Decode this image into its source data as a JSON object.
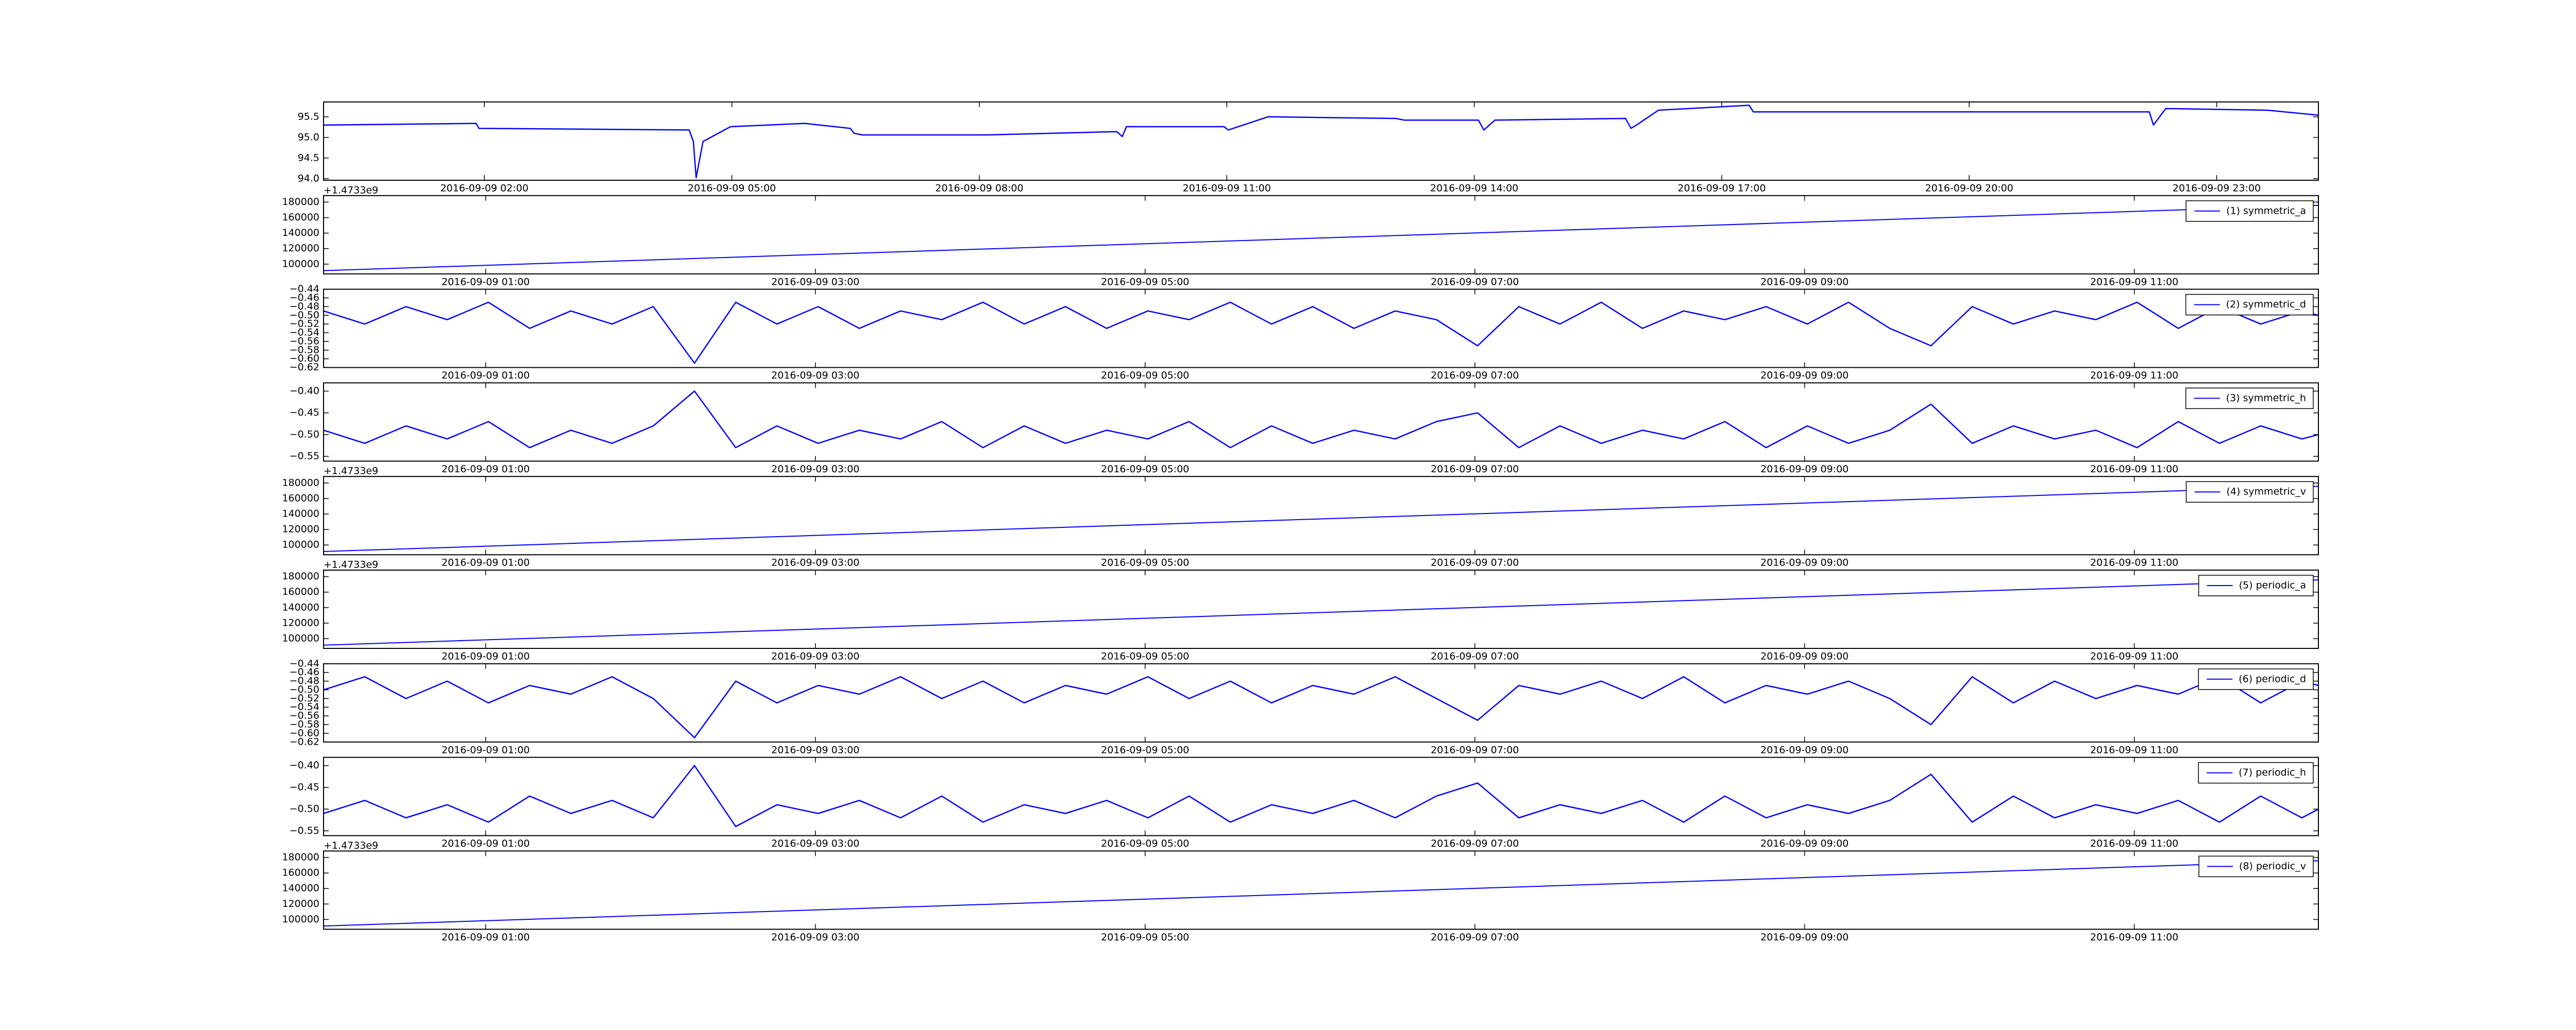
{
  "chart_data": [
    {
      "type": "line",
      "x": [
        "2016-09-09 00:03",
        "2016-09-09 01:54",
        "2016-09-09 01:56",
        "2016-09-09 04:29",
        "2016-09-09 04:32",
        "2016-09-09 04:34",
        "2016-09-09 04:39",
        "2016-09-09 04:59",
        "2016-09-09 05:53",
        "2016-09-09 06:26",
        "2016-09-09 06:29",
        "2016-09-09 06:35",
        "2016-09-09 08:05",
        "2016-09-09 09:40",
        "2016-09-09 09:44",
        "2016-09-09 09:47",
        "2016-09-09 10:58",
        "2016-09-09 11:01",
        "2016-09-09 11:30",
        "2016-09-09 13:03",
        "2016-09-09 13:09",
        "2016-09-09 14:03",
        "2016-09-09 14:07",
        "2016-09-09 14:15",
        "2016-09-09 15:50",
        "2016-09-09 15:54",
        "2016-09-09 15:58",
        "2016-09-09 16:14",
        "2016-09-09 17:20",
        "2016-09-09 17:23",
        "2016-09-09 19:44",
        "2016-09-09 19:46",
        "2016-09-09 21:01",
        "2016-09-09 22:11",
        "2016-09-09 22:14",
        "2016-09-09 22:23",
        "2016-09-09 23:37",
        "2016-09-10 00:14"
      ],
      "series": [
        {
          "color": "#0000ff",
          "values": [
            95.3,
            95.34,
            95.22,
            95.18,
            94.9,
            94.02,
            94.9,
            95.26,
            95.34,
            95.22,
            95.1,
            95.06,
            95.06,
            95.14,
            95.02,
            95.26,
            95.26,
            95.18,
            95.5,
            95.46,
            95.42,
            95.42,
            95.18,
            95.42,
            95.46,
            95.22,
            95.3,
            95.66,
            95.78,
            95.62,
            95.62,
            95.62,
            95.62,
            95.62,
            95.3,
            95.7,
            95.66,
            95.54
          ]
        }
      ],
      "xlim": [
        "2016-09-09 00:03",
        "2016-09-10 00:14"
      ],
      "xticks": [
        "2016-09-09 02:00",
        "2016-09-09 05:00",
        "2016-09-09 08:00",
        "2016-09-09 11:00",
        "2016-09-09 14:00",
        "2016-09-09 17:00",
        "2016-09-09 20:00",
        "2016-09-09 23:00"
      ],
      "ylim": [
        93.96,
        95.86
      ],
      "yticks": [
        {
          "value": 94,
          "label": "94.0"
        },
        94.5,
        {
          "value": 95,
          "label": "95.0"
        },
        95.5
      ]
    },
    {
      "type": "line",
      "x": [
        "2016-09-09 00:01",
        "2016-09-09 12:07"
      ],
      "series": [
        {
          "name": "(1) symmetric_a",
          "color": "#0000ff",
          "values": [
            91600,
            175800
          ]
        }
      ],
      "xlim": [
        "2016-09-09 00:01",
        "2016-09-09 12:07"
      ],
      "xticks": [
        "2016-09-09 01:00",
        "2016-09-09 03:00",
        "2016-09-09 05:00",
        "2016-09-09 07:00",
        "2016-09-09 09:00",
        "2016-09-09 11:00"
      ],
      "ylim": [
        87400,
        188400
      ],
      "yticks": [
        100000,
        120000,
        140000,
        160000,
        180000
      ],
      "y_offset_label": "+1.4733e9",
      "legend": "upper right"
    },
    {
      "type": "line",
      "x": [
        "2016-09-09 00:01",
        "2016-09-09 00:16",
        "2016-09-09 00:31",
        "2016-09-09 00:46",
        "2016-09-09 01:01",
        "2016-09-09 01:16",
        "2016-09-09 01:31",
        "2016-09-09 01:46",
        "2016-09-09 02:01",
        "2016-09-09 02:16",
        "2016-09-09 02:31",
        "2016-09-09 02:46",
        "2016-09-09 03:01",
        "2016-09-09 03:16",
        "2016-09-09 03:31",
        "2016-09-09 03:46",
        "2016-09-09 04:01",
        "2016-09-09 04:16",
        "2016-09-09 04:31",
        "2016-09-09 04:46",
        "2016-09-09 05:01",
        "2016-09-09 05:16",
        "2016-09-09 05:31",
        "2016-09-09 05:46",
        "2016-09-09 06:01",
        "2016-09-09 06:16",
        "2016-09-09 06:31",
        "2016-09-09 06:46",
        "2016-09-09 07:01",
        "2016-09-09 07:16",
        "2016-09-09 07:31",
        "2016-09-09 07:46",
        "2016-09-09 08:01",
        "2016-09-09 08:16",
        "2016-09-09 08:31",
        "2016-09-09 08:46",
        "2016-09-09 09:01",
        "2016-09-09 09:16",
        "2016-09-09 09:31",
        "2016-09-09 09:46",
        "2016-09-09 10:01",
        "2016-09-09 10:16",
        "2016-09-09 10:31",
        "2016-09-09 10:46",
        "2016-09-09 11:01",
        "2016-09-09 11:16",
        "2016-09-09 11:31",
        "2016-09-09 11:46",
        "2016-09-09 12:01",
        "2016-09-09 12:07"
      ],
      "series": [
        {
          "name": "(2) symmetric_d",
          "color": "#0000ff",
          "values": [
            -0.49,
            -0.52,
            -0.48,
            -0.51,
            -0.47,
            -0.53,
            -0.49,
            -0.52,
            -0.48,
            -0.61,
            -0.47,
            -0.52,
            -0.48,
            -0.53,
            -0.49,
            -0.51,
            -0.47,
            -0.52,
            -0.48,
            -0.53,
            -0.49,
            -0.51,
            -0.47,
            -0.52,
            -0.48,
            -0.53,
            -0.49,
            -0.51,
            -0.57,
            -0.48,
            -0.52,
            -0.47,
            -0.53,
            -0.49,
            -0.51,
            -0.48,
            -0.52,
            -0.47,
            -0.53,
            -0.57,
            -0.48,
            -0.52,
            -0.49,
            -0.51,
            -0.47,
            -0.53,
            -0.48,
            -0.52,
            -0.49,
            -0.5
          ]
        }
      ],
      "xlim": [
        "2016-09-09 00:01",
        "2016-09-09 12:07"
      ],
      "xticks": [
        "2016-09-09 01:00",
        "2016-09-09 03:00",
        "2016-09-09 05:00",
        "2016-09-09 07:00",
        "2016-09-09 09:00",
        "2016-09-09 11:00"
      ],
      "ylim": [
        -0.62,
        -0.44
      ],
      "yticks": [
        {
          "value": -0.62,
          "label": "−0.62"
        },
        {
          "value": -0.6,
          "label": "−0.60"
        },
        {
          "value": -0.58,
          "label": "−0.58"
        },
        {
          "value": -0.56,
          "label": "−0.56"
        },
        {
          "value": -0.54,
          "label": "−0.54"
        },
        {
          "value": -0.52,
          "label": "−0.52"
        },
        {
          "value": -0.5,
          "label": "−0.50"
        },
        {
          "value": -0.48,
          "label": "−0.48"
        },
        {
          "value": -0.46,
          "label": "−0.46"
        },
        {
          "value": -0.44,
          "label": "−0.44"
        }
      ],
      "legend": "upper right"
    },
    {
      "type": "line",
      "x": [
        "2016-09-09 00:01",
        "2016-09-09 00:16",
        "2016-09-09 00:31",
        "2016-09-09 00:46",
        "2016-09-09 01:01",
        "2016-09-09 01:16",
        "2016-09-09 01:31",
        "2016-09-09 01:46",
        "2016-09-09 02:01",
        "2016-09-09 02:16",
        "2016-09-09 02:31",
        "2016-09-09 02:46",
        "2016-09-09 03:01",
        "2016-09-09 03:16",
        "2016-09-09 03:31",
        "2016-09-09 03:46",
        "2016-09-09 04:01",
        "2016-09-09 04:16",
        "2016-09-09 04:31",
        "2016-09-09 04:46",
        "2016-09-09 05:01",
        "2016-09-09 05:16",
        "2016-09-09 05:31",
        "2016-09-09 05:46",
        "2016-09-09 06:01",
        "2016-09-09 06:16",
        "2016-09-09 06:31",
        "2016-09-09 06:46",
        "2016-09-09 07:01",
        "2016-09-09 07:16",
        "2016-09-09 07:31",
        "2016-09-09 07:46",
        "2016-09-09 08:01",
        "2016-09-09 08:16",
        "2016-09-09 08:31",
        "2016-09-09 08:46",
        "2016-09-09 09:01",
        "2016-09-09 09:16",
        "2016-09-09 09:31",
        "2016-09-09 09:46",
        "2016-09-09 10:01",
        "2016-09-09 10:16",
        "2016-09-09 10:31",
        "2016-09-09 10:46",
        "2016-09-09 11:01",
        "2016-09-09 11:16",
        "2016-09-09 11:31",
        "2016-09-09 11:46",
        "2016-09-09 12:01",
        "2016-09-09 12:07"
      ],
      "series": [
        {
          "name": "(3) symmetric_h",
          "color": "#0000ff",
          "values": [
            -0.49,
            -0.52,
            -0.48,
            -0.51,
            -0.47,
            -0.53,
            -0.49,
            -0.52,
            -0.48,
            -0.4,
            -0.53,
            -0.48,
            -0.52,
            -0.49,
            -0.51,
            -0.47,
            -0.53,
            -0.48,
            -0.52,
            -0.49,
            -0.51,
            -0.47,
            -0.53,
            -0.48,
            -0.52,
            -0.49,
            -0.51,
            -0.47,
            -0.45,
            -0.53,
            -0.48,
            -0.52,
            -0.49,
            -0.51,
            -0.47,
            -0.53,
            -0.48,
            -0.52,
            -0.49,
            -0.43,
            -0.52,
            -0.48,
            -0.51,
            -0.49,
            -0.53,
            -0.47,
            -0.52,
            -0.48,
            -0.51,
            -0.5
          ]
        }
      ],
      "xlim": [
        "2016-09-09 00:01",
        "2016-09-09 12:07"
      ],
      "xticks": [
        "2016-09-09 01:00",
        "2016-09-09 03:00",
        "2016-09-09 05:00",
        "2016-09-09 07:00",
        "2016-09-09 09:00",
        "2016-09-09 11:00"
      ],
      "ylim": [
        -0.561,
        -0.381
      ],
      "yticks": [
        {
          "value": -0.55,
          "label": "−0.55"
        },
        {
          "value": -0.5,
          "label": "−0.50"
        },
        {
          "value": -0.45,
          "label": "−0.45"
        },
        {
          "value": -0.4,
          "label": "−0.40"
        }
      ],
      "legend": "upper right"
    },
    {
      "type": "line",
      "x": [
        "2016-09-09 00:01",
        "2016-09-09 12:07"
      ],
      "series": [
        {
          "name": "(4) symmetric_v",
          "color": "#0000ff",
          "values": [
            91600,
            175800
          ]
        }
      ],
      "xlim": [
        "2016-09-09 00:01",
        "2016-09-09 12:07"
      ],
      "xticks": [
        "2016-09-09 01:00",
        "2016-09-09 03:00",
        "2016-09-09 05:00",
        "2016-09-09 07:00",
        "2016-09-09 09:00",
        "2016-09-09 11:00"
      ],
      "ylim": [
        87400,
        188400
      ],
      "yticks": [
        100000,
        120000,
        140000,
        160000,
        180000
      ],
      "y_offset_label": "+1.4733e9",
      "legend": "upper right"
    },
    {
      "type": "line",
      "x": [
        "2016-09-09 00:01",
        "2016-09-09 12:07"
      ],
      "series": [
        {
          "name": "(5) periodic_a",
          "color": "#0000ff",
          "values": [
            91600,
            175800
          ]
        }
      ],
      "xlim": [
        "2016-09-09 00:01",
        "2016-09-09 12:07"
      ],
      "xticks": [
        "2016-09-09 01:00",
        "2016-09-09 03:00",
        "2016-09-09 05:00",
        "2016-09-09 07:00",
        "2016-09-09 09:00",
        "2016-09-09 11:00"
      ],
      "ylim": [
        87400,
        188400
      ],
      "yticks": [
        100000,
        120000,
        140000,
        160000,
        180000
      ],
      "y_offset_label": "+1.4733e9",
      "legend": "upper right"
    },
    {
      "type": "line",
      "x": [
        "2016-09-09 00:01",
        "2016-09-09 00:16",
        "2016-09-09 00:31",
        "2016-09-09 00:46",
        "2016-09-09 01:01",
        "2016-09-09 01:16",
        "2016-09-09 01:31",
        "2016-09-09 01:46",
        "2016-09-09 02:01",
        "2016-09-09 02:16",
        "2016-09-09 02:31",
        "2016-09-09 02:46",
        "2016-09-09 03:01",
        "2016-09-09 03:16",
        "2016-09-09 03:31",
        "2016-09-09 03:46",
        "2016-09-09 04:01",
        "2016-09-09 04:16",
        "2016-09-09 04:31",
        "2016-09-09 04:46",
        "2016-09-09 05:01",
        "2016-09-09 05:16",
        "2016-09-09 05:31",
        "2016-09-09 05:46",
        "2016-09-09 06:01",
        "2016-09-09 06:16",
        "2016-09-09 06:31",
        "2016-09-09 06:46",
        "2016-09-09 07:01",
        "2016-09-09 07:16",
        "2016-09-09 07:31",
        "2016-09-09 07:46",
        "2016-09-09 08:01",
        "2016-09-09 08:16",
        "2016-09-09 08:31",
        "2016-09-09 08:46",
        "2016-09-09 09:01",
        "2016-09-09 09:16",
        "2016-09-09 09:31",
        "2016-09-09 09:46",
        "2016-09-09 10:01",
        "2016-09-09 10:16",
        "2016-09-09 10:31",
        "2016-09-09 10:46",
        "2016-09-09 11:01",
        "2016-09-09 11:16",
        "2016-09-09 11:31",
        "2016-09-09 11:46",
        "2016-09-09 12:01",
        "2016-09-09 12:07"
      ],
      "series": [
        {
          "name": "(6) periodic_d",
          "color": "#0000ff",
          "values": [
            -0.5,
            -0.47,
            -0.52,
            -0.48,
            -0.53,
            -0.49,
            -0.51,
            -0.47,
            -0.52,
            -0.61,
            -0.48,
            -0.53,
            -0.49,
            -0.51,
            -0.47,
            -0.52,
            -0.48,
            -0.53,
            -0.49,
            -0.51,
            -0.47,
            -0.52,
            -0.48,
            -0.53,
            -0.49,
            -0.51,
            -0.47,
            -0.52,
            -0.57,
            -0.49,
            -0.51,
            -0.48,
            -0.52,
            -0.47,
            -0.53,
            -0.49,
            -0.51,
            -0.48,
            -0.52,
            -0.58,
            -0.47,
            -0.53,
            -0.48,
            -0.52,
            -0.49,
            -0.51,
            -0.47,
            -0.53,
            -0.48,
            -0.49
          ]
        }
      ],
      "xlim": [
        "2016-09-09 00:01",
        "2016-09-09 12:07"
      ],
      "xticks": [
        "2016-09-09 01:00",
        "2016-09-09 03:00",
        "2016-09-09 05:00",
        "2016-09-09 07:00",
        "2016-09-09 09:00",
        "2016-09-09 11:00"
      ],
      "ylim": [
        -0.62,
        -0.44
      ],
      "yticks": [
        {
          "value": -0.62,
          "label": "−0.62"
        },
        {
          "value": -0.6,
          "label": "−0.60"
        },
        {
          "value": -0.58,
          "label": "−0.58"
        },
        {
          "value": -0.56,
          "label": "−0.56"
        },
        {
          "value": -0.54,
          "label": "−0.54"
        },
        {
          "value": -0.52,
          "label": "−0.52"
        },
        {
          "value": -0.5,
          "label": "−0.50"
        },
        {
          "value": -0.48,
          "label": "−0.48"
        },
        {
          "value": -0.46,
          "label": "−0.46"
        },
        {
          "value": -0.44,
          "label": "−0.44"
        }
      ],
      "legend": "upper right"
    },
    {
      "type": "line",
      "x": [
        "2016-09-09 00:01",
        "2016-09-09 00:16",
        "2016-09-09 00:31",
        "2016-09-09 00:46",
        "2016-09-09 01:01",
        "2016-09-09 01:16",
        "2016-09-09 01:31",
        "2016-09-09 01:46",
        "2016-09-09 02:01",
        "2016-09-09 02:16",
        "2016-09-09 02:31",
        "2016-09-09 02:46",
        "2016-09-09 03:01",
        "2016-09-09 03:16",
        "2016-09-09 03:31",
        "2016-09-09 03:46",
        "2016-09-09 04:01",
        "2016-09-09 04:16",
        "2016-09-09 04:31",
        "2016-09-09 04:46",
        "2016-09-09 05:01",
        "2016-09-09 05:16",
        "2016-09-09 05:31",
        "2016-09-09 05:46",
        "2016-09-09 06:01",
        "2016-09-09 06:16",
        "2016-09-09 06:31",
        "2016-09-09 06:46",
        "2016-09-09 07:01",
        "2016-09-09 07:16",
        "2016-09-09 07:31",
        "2016-09-09 07:46",
        "2016-09-09 08:01",
        "2016-09-09 08:16",
        "2016-09-09 08:31",
        "2016-09-09 08:46",
        "2016-09-09 09:01",
        "2016-09-09 09:16",
        "2016-09-09 09:31",
        "2016-09-09 09:46",
        "2016-09-09 10:01",
        "2016-09-09 10:16",
        "2016-09-09 10:31",
        "2016-09-09 10:46",
        "2016-09-09 11:01",
        "2016-09-09 11:16",
        "2016-09-09 11:31",
        "2016-09-09 11:46",
        "2016-09-09 12:01",
        "2016-09-09 12:07"
      ],
      "series": [
        {
          "name": "(7) periodic_h",
          "color": "#0000ff",
          "values": [
            -0.51,
            -0.48,
            -0.52,
            -0.49,
            -0.53,
            -0.47,
            -0.51,
            -0.48,
            -0.52,
            -0.4,
            -0.54,
            -0.49,
            -0.51,
            -0.48,
            -0.52,
            -0.47,
            -0.53,
            -0.49,
            -0.51,
            -0.48,
            -0.52,
            -0.47,
            -0.53,
            -0.49,
            -0.51,
            -0.48,
            -0.52,
            -0.47,
            -0.44,
            -0.52,
            -0.49,
            -0.51,
            -0.48,
            -0.53,
            -0.47,
            -0.52,
            -0.49,
            -0.51,
            -0.48,
            -0.42,
            -0.53,
            -0.47,
            -0.52,
            -0.49,
            -0.51,
            -0.48,
            -0.53,
            -0.47,
            -0.52,
            -0.5
          ]
        }
      ],
      "xlim": [
        "2016-09-09 00:01",
        "2016-09-09 12:07"
      ],
      "xticks": [
        "2016-09-09 01:00",
        "2016-09-09 03:00",
        "2016-09-09 05:00",
        "2016-09-09 07:00",
        "2016-09-09 09:00",
        "2016-09-09 11:00"
      ],
      "ylim": [
        -0.561,
        -0.381
      ],
      "yticks": [
        {
          "value": -0.55,
          "label": "−0.55"
        },
        {
          "value": -0.5,
          "label": "−0.50"
        },
        {
          "value": -0.45,
          "label": "−0.45"
        },
        {
          "value": -0.4,
          "label": "−0.40"
        }
      ],
      "legend": "upper right"
    },
    {
      "type": "line",
      "x": [
        "2016-09-09 00:01",
        "2016-09-09 12:07"
      ],
      "series": [
        {
          "name": "(8) periodic_v",
          "color": "#0000ff",
          "values": [
            91600,
            175800
          ]
        }
      ],
      "xlim": [
        "2016-09-09 00:01",
        "2016-09-09 12:07"
      ],
      "xticks": [
        "2016-09-09 01:00",
        "2016-09-09 03:00",
        "2016-09-09 05:00",
        "2016-09-09 07:00",
        "2016-09-09 09:00",
        "2016-09-09 11:00"
      ],
      "ylim": [
        87400,
        188400
      ],
      "yticks": [
        100000,
        120000,
        140000,
        160000,
        180000
      ],
      "y_offset_label": "+1.4733e9",
      "legend": "upper right"
    }
  ]
}
